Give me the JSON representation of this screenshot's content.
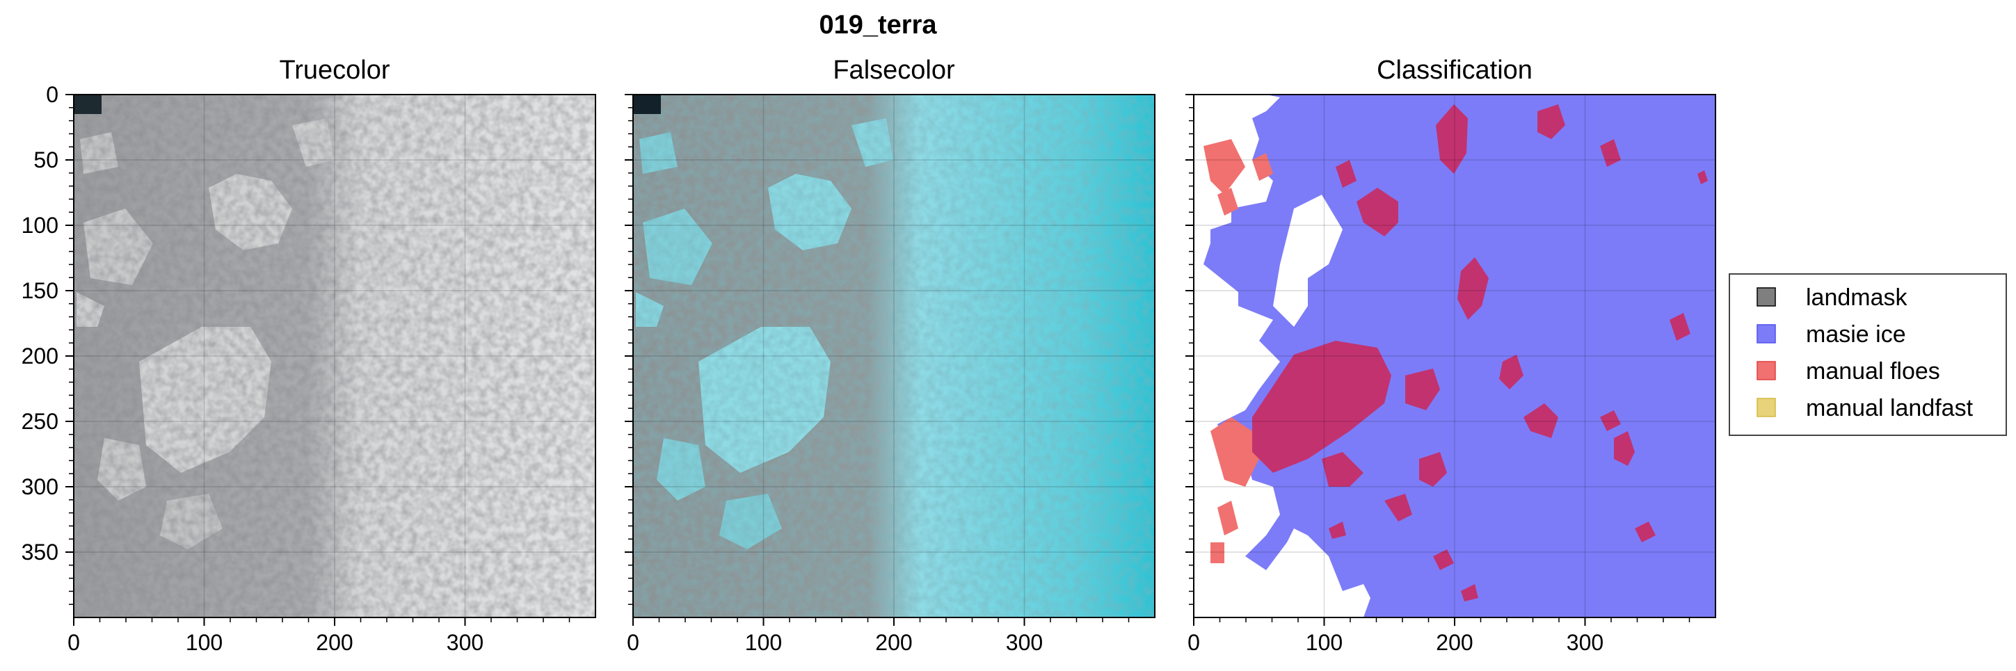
{
  "title": "019_terra",
  "colors": {
    "masie": "#7c7cf8",
    "floes": "#f0716f",
    "overlap": "#c2326f",
    "landmask": "#7f7f7f",
    "landfast": "#e8d27a"
  },
  "chart_data": [
    {
      "type": "image",
      "title": "Truecolor",
      "xlim": [
        0,
        400
      ],
      "ylim": [
        400,
        0
      ],
      "xticks": [
        0,
        100,
        200,
        300
      ],
      "yticks": [
        0,
        50,
        100,
        150,
        200,
        250,
        300,
        350
      ],
      "grid": true
    },
    {
      "type": "image",
      "title": "Falsecolor",
      "xlim": [
        0,
        400
      ],
      "ylim": [
        400,
        0
      ],
      "xticks": [
        0,
        100,
        200,
        300
      ],
      "grid": true
    },
    {
      "type": "image",
      "title": "Classification",
      "xlim": [
        0,
        400
      ],
      "ylim": [
        400,
        0
      ],
      "xticks": [
        0,
        100,
        200,
        300
      ],
      "grid": true,
      "legend": {
        "placement": "right",
        "entries": [
          {
            "label": "landmask",
            "color": "#7f7f7f"
          },
          {
            "label": "masie ice",
            "color": "#7c7cf8"
          },
          {
            "label": "manual floes",
            "color": "#f0716f"
          },
          {
            "label": "manual landfast",
            "color": "#e8d27a"
          }
        ]
      }
    }
  ]
}
